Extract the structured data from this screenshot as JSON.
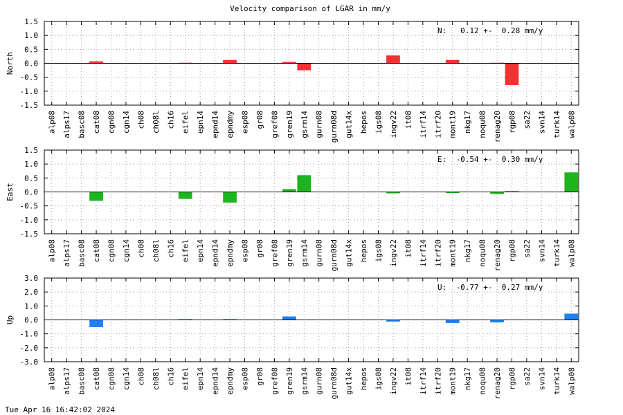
{
  "timestamp": "Tue Apr 16 16:42:02 2024",
  "chart_data": {
    "type": "bar",
    "title": "Velocity comparison of LGAR in mm/y",
    "categories": [
      "alp08",
      "alps17",
      "basc08",
      "cat08",
      "cgn08",
      "cgn14",
      "ch08",
      "ch08l",
      "ch16",
      "eifel",
      "epn14",
      "epnd14",
      "epndmy",
      "esp08",
      "gr08",
      "gref08",
      "gren19",
      "gsrm14",
      "gurn08",
      "gurn08d",
      "gut14x",
      "hepos",
      "igs08",
      "ingv22",
      "it08",
      "itrf14",
      "itrf20",
      "mont19",
      "nkg17",
      "noqu08",
      "renag20",
      "rgp08",
      "sa22",
      "svn14",
      "turk14",
      "walp08"
    ],
    "grid": true,
    "panels": [
      {
        "ylabel": "North",
        "ylim": [
          -1.5,
          1.5
        ],
        "yticks": [
          "1.5",
          "1.0",
          "0.5",
          "0.0",
          "-0.5",
          "-1.0",
          "-1.5"
        ],
        "color": "#f03232",
        "annotation": "N:   0.12 +-  0.28 mm/y",
        "values": [
          null,
          null,
          null,
          0.07,
          null,
          null,
          null,
          null,
          null,
          0.02,
          null,
          null,
          0.12,
          null,
          null,
          null,
          0.05,
          -0.25,
          null,
          null,
          null,
          null,
          null,
          0.28,
          null,
          null,
          null,
          0.12,
          null,
          null,
          0.02,
          -0.78,
          null,
          null,
          null,
          null
        ]
      },
      {
        "ylabel": "East",
        "ylim": [
          -1.5,
          1.5
        ],
        "yticks": [
          "1.5",
          "1.0",
          "0.5",
          "0.0",
          "-0.5",
          "-1.0",
          "-1.5"
        ],
        "color": "#1eb41e",
        "annotation": "E:  -0.54 +-  0.30 mm/y",
        "values": [
          null,
          null,
          null,
          -0.32,
          null,
          null,
          null,
          null,
          null,
          -0.25,
          null,
          null,
          -0.38,
          null,
          null,
          null,
          0.1,
          0.6,
          null,
          null,
          null,
          null,
          null,
          -0.05,
          null,
          null,
          null,
          -0.03,
          null,
          null,
          -0.07,
          0.03,
          null,
          null,
          null,
          0.7
        ]
      },
      {
        "ylabel": "Up",
        "ylim": [
          -3.0,
          3.0
        ],
        "yticks": [
          "3.0",
          "2.0",
          "1.0",
          "0.0",
          "-1.0",
          "-2.0",
          "-3.0"
        ],
        "color": "#1e82f0",
        "annotation": "U:  -0.77 +-  0.27 mm/y",
        "values": [
          null,
          null,
          null,
          -0.52,
          null,
          null,
          null,
          null,
          null,
          0.05,
          null,
          null,
          0.05,
          null,
          null,
          null,
          0.25,
          null,
          null,
          null,
          null,
          null,
          null,
          -0.12,
          null,
          null,
          null,
          -0.22,
          null,
          null,
          -0.18,
          null,
          null,
          null,
          null,
          0.45
        ]
      }
    ]
  }
}
